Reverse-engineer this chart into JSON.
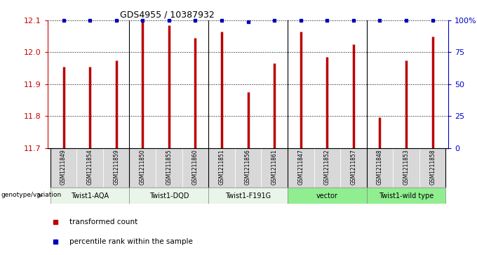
{
  "title": "GDS4955 / 10387932",
  "samples": [
    "GSM1211849",
    "GSM1211854",
    "GSM1211859",
    "GSM1211850",
    "GSM1211855",
    "GSM1211860",
    "GSM1211851",
    "GSM1211856",
    "GSM1211861",
    "GSM1211847",
    "GSM1211852",
    "GSM1211857",
    "GSM1211848",
    "GSM1211853",
    "GSM1211858"
  ],
  "bar_values": [
    11.955,
    11.955,
    11.975,
    12.1,
    12.085,
    12.045,
    12.065,
    11.875,
    11.965,
    12.065,
    11.985,
    12.025,
    11.795,
    11.975,
    12.05
  ],
  "blue_at_top": [
    true,
    true,
    true,
    true,
    true,
    true,
    true,
    false,
    true,
    true,
    true,
    true,
    true,
    true,
    true
  ],
  "ylim": [
    11.7,
    12.1
  ],
  "yticks": [
    11.7,
    11.8,
    11.9,
    12.0,
    12.1
  ],
  "right_yticks": [
    0,
    25,
    50,
    75,
    100
  ],
  "right_yticklabels": [
    "0",
    "25",
    "50",
    "75",
    "100%"
  ],
  "bar_color": "#bb0000",
  "dot_color": "#0000bb",
  "groups": [
    {
      "label": "Twist1-AQA",
      "start": 0,
      "end": 3,
      "color": "#e8f5e8"
    },
    {
      "label": "Twist1-DQD",
      "start": 3,
      "end": 6,
      "color": "#e8f5e8"
    },
    {
      "label": "Twist1-F191G",
      "start": 6,
      "end": 9,
      "color": "#e8f5e8"
    },
    {
      "label": "vector",
      "start": 9,
      "end": 12,
      "color": "#90ee90"
    },
    {
      "label": "Twist1-wild type",
      "start": 12,
      "end": 15,
      "color": "#90ee90"
    }
  ],
  "sample_bg_color": "#d8d8d8",
  "genotype_label": "genotype/variation",
  "legend_items": [
    {
      "color": "#bb0000",
      "label": "transformed count"
    },
    {
      "color": "#0000bb",
      "label": "percentile rank within the sample"
    }
  ],
  "left_ylabel_color": "#cc0000",
  "right_ylabel_color": "#0000cc",
  "group_boundaries": [
    3,
    6,
    9,
    12
  ]
}
